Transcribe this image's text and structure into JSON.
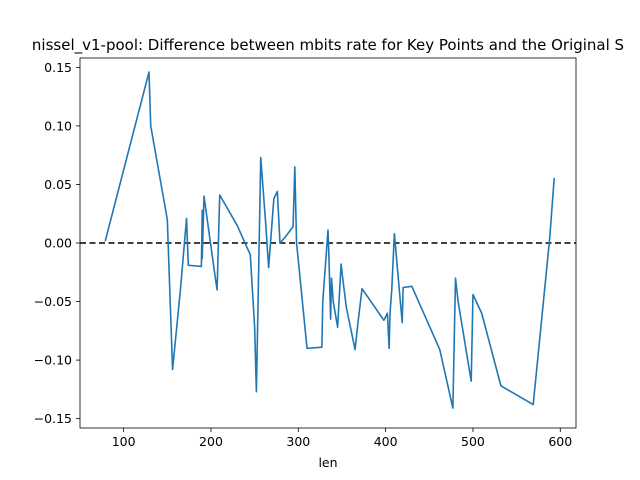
{
  "chart_data": {
    "type": "line",
    "title": "nissel_v1-pool: Difference between mbits rate for Key Points and the Original S",
    "xlabel": "len",
    "ylabel": "",
    "xlim": [
      50,
      618
    ],
    "ylim": [
      -0.158,
      0.158
    ],
    "xticks": [
      100,
      200,
      300,
      400,
      500,
      600
    ],
    "yticks": [
      -0.15,
      -0.1,
      -0.05,
      0.0,
      0.05,
      0.1,
      0.15
    ],
    "ytick_labels": [
      "−0.15",
      "−0.10",
      "−0.05",
      "0.00",
      "0.05",
      "0.10",
      "0.15"
    ],
    "grid": false,
    "reference_line": {
      "y": 0.0,
      "style": "dashed",
      "color": "#000000"
    },
    "series": [
      {
        "color": "#1f77b4",
        "x": [
          79,
          129,
          131,
          150,
          156,
          165,
          172,
          174,
          189,
          190,
          190,
          192,
          205,
          207,
          210,
          230,
          245,
          250,
          252,
          257,
          263,
          266,
          272,
          276,
          279,
          285,
          294,
          296,
          298,
          310,
          327,
          328,
          334,
          335,
          337,
          338,
          340,
          345,
          349,
          350,
          355,
          365,
          368,
          373,
          398,
          402,
          404,
          405,
          407,
          410,
          416,
          419,
          420,
          430,
          462,
          477,
          480,
          483,
          498,
          500,
          510,
          532,
          569,
          588,
          593
        ],
        "y": [
          0.002,
          0.146,
          0.1,
          0.02,
          -0.108,
          -0.04,
          0.021,
          -0.019,
          -0.02,
          0.028,
          -0.013,
          0.04,
          -0.03,
          -0.04,
          0.041,
          0.015,
          -0.01,
          -0.072,
          -0.127,
          0.073,
          0.013,
          -0.021,
          0.038,
          0.044,
          0.0,
          0.005,
          0.014,
          0.065,
          0.0,
          -0.09,
          -0.089,
          -0.05,
          0.011,
          -0.01,
          -0.065,
          -0.03,
          -0.05,
          -0.072,
          -0.018,
          -0.025,
          -0.055,
          -0.091,
          -0.07,
          -0.039,
          -0.066,
          -0.06,
          -0.09,
          -0.06,
          -0.04,
          0.008,
          -0.043,
          -0.068,
          -0.038,
          -0.037,
          -0.091,
          -0.141,
          -0.03,
          -0.05,
          -0.118,
          -0.044,
          -0.06,
          -0.122,
          -0.138,
          0.005,
          0.055
        ]
      }
    ]
  }
}
